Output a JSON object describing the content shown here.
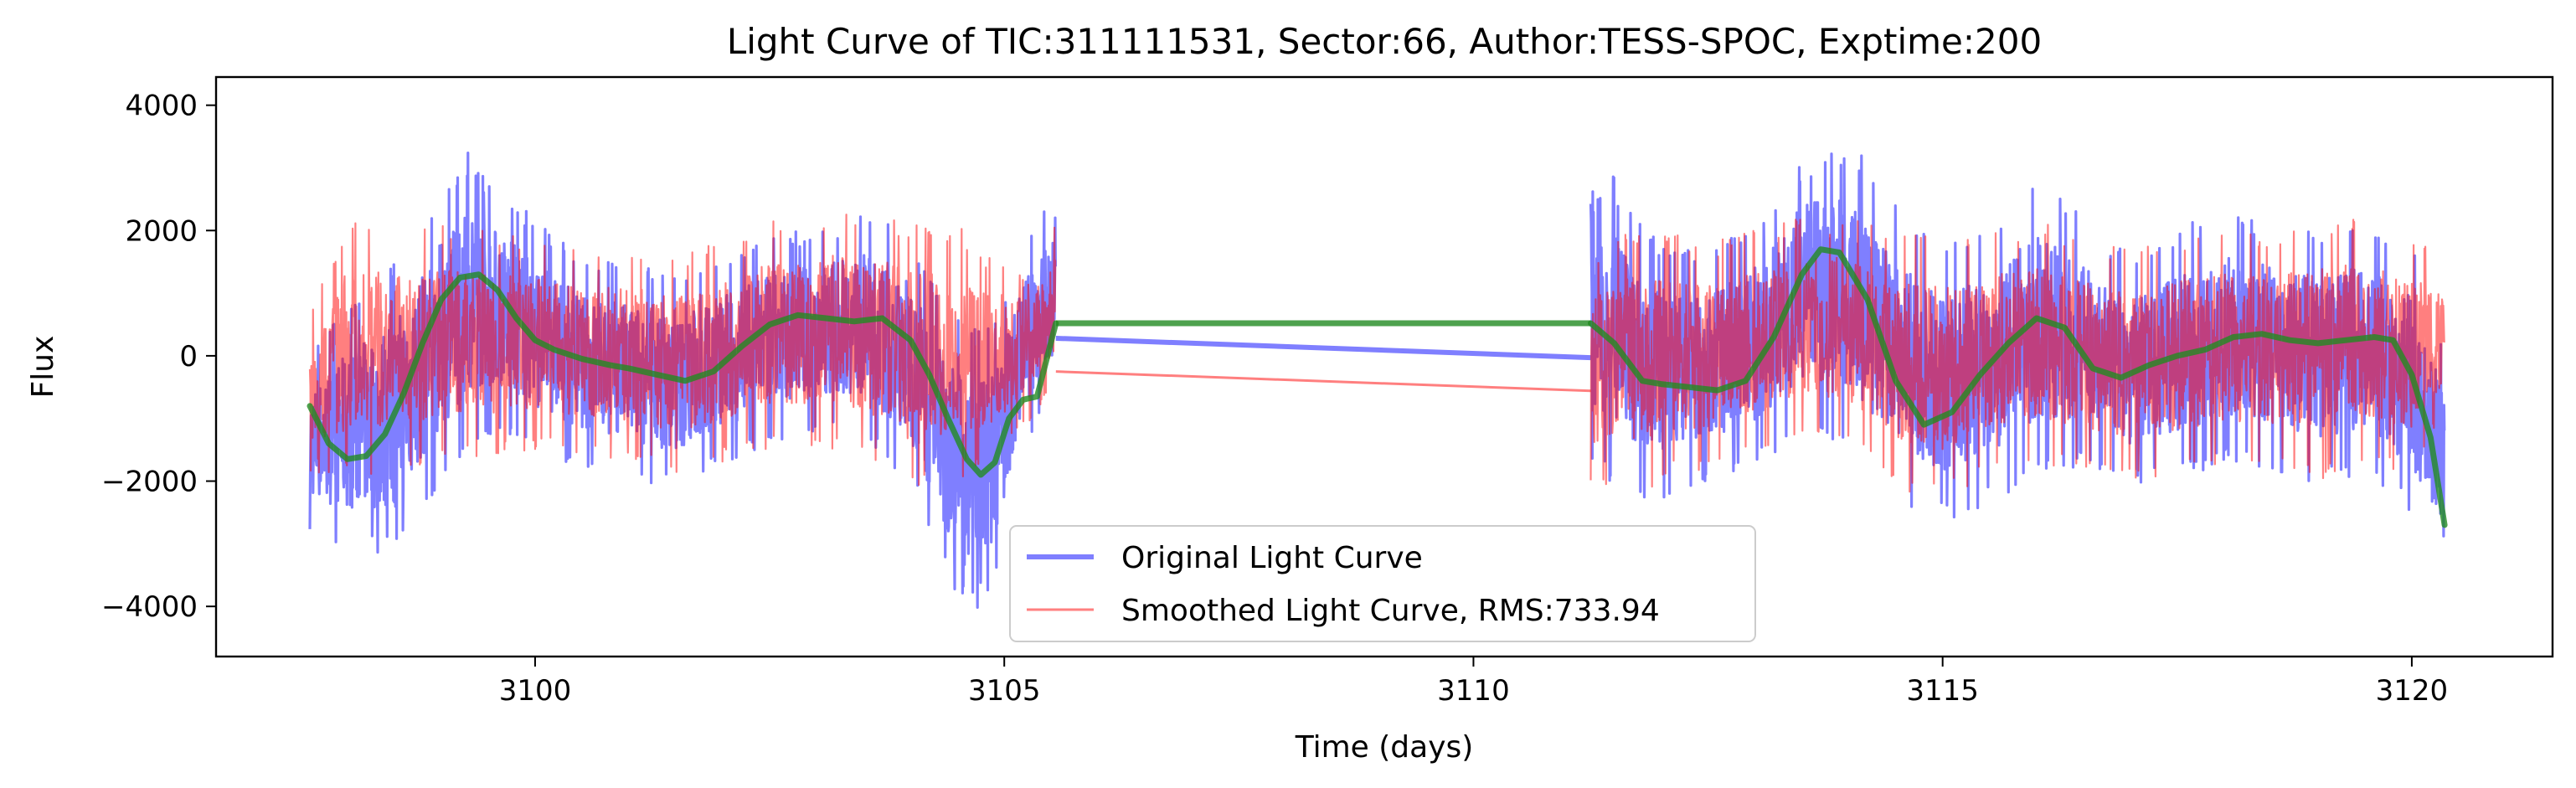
{
  "chart_data": {
    "type": "line",
    "title": "Light Curve of TIC:311111531, Sector:66, Author:TESS-SPOC, Exptime:200",
    "xlabel": "Time (days)",
    "ylabel": "Flux",
    "xlim": [
      3096.6,
      3121.5
    ],
    "ylim": [
      -4800,
      4450
    ],
    "xticks": [
      3100,
      3105,
      3110,
      3115,
      3120
    ],
    "xtick_labels": [
      "3100",
      "3105",
      "3110",
      "3115",
      "3120"
    ],
    "yticks": [
      -4000,
      -2000,
      0,
      2000,
      4000
    ],
    "ytick_labels": [
      "−4000",
      "−2000",
      "0",
      "2000",
      "4000"
    ],
    "grid": false,
    "legend": {
      "position": "lower-center"
    },
    "segments": [
      {
        "start": 3097.6,
        "end": 3105.55
      },
      {
        "start": 3111.25,
        "end": 3120.35
      }
    ],
    "gap_lines": [
      {
        "series": "Original Light Curve",
        "x": [
          3105.55,
          3111.25
        ],
        "y": [
          280,
          -30
        ]
      },
      {
        "series": "Smoothed Light Curve, RMS:733.94",
        "x": [
          3105.55,
          3111.25
        ],
        "y": [
          -250,
          -560
        ]
      },
      {
        "series": "trend",
        "x": [
          3105.55,
          3111.25
        ],
        "y": [
          520,
          520
        ]
      }
    ],
    "series": [
      {
        "name": "Original Light Curve",
        "color": "#0000ff",
        "opacity": 0.5,
        "legend": true,
        "envelope": {
          "x": [
            3097.6,
            3098.0,
            3098.5,
            3099.0,
            3099.3,
            3099.6,
            3100.0,
            3100.5,
            3101.0,
            3101.5,
            3102.0,
            3102.5,
            3103.0,
            3103.5,
            3104.0,
            3104.3,
            3104.6,
            3104.9,
            3105.2,
            3105.55,
            3111.25,
            3111.6,
            3112.0,
            3112.5,
            3113.0,
            3113.5,
            3114.0,
            3114.5,
            3115.0,
            3115.5,
            3116.0,
            3116.5,
            3117.0,
            3117.5,
            3118.0,
            3118.5,
            3119.0,
            3119.5,
            3120.0,
            3120.35
          ],
          "upper": [
            0,
            800,
            1500,
            2700,
            3300,
            2800,
            2200,
            1600,
            1500,
            1300,
            1600,
            1900,
            2100,
            2300,
            2000,
            1000,
            400,
            500,
            1800,
            2600,
            4000,
            2500,
            1800,
            1600,
            2200,
            3300,
            3500,
            2400,
            1800,
            2100,
            2900,
            2200,
            1600,
            2000,
            2400,
            2200,
            2000,
            2200,
            1800,
            0
          ],
          "lower": [
            -2800,
            -3200,
            -3400,
            -2000,
            -1500,
            -1200,
            -1500,
            -1800,
            -2000,
            -2200,
            -1800,
            -1400,
            -1200,
            -1300,
            -2100,
            -3300,
            -4300,
            -3800,
            -1500,
            -500,
            -1800,
            -2200,
            -2300,
            -2000,
            -1800,
            -1200,
            -1500,
            -2300,
            -2700,
            -2400,
            -1900,
            -1800,
            -2100,
            -2000,
            -1700,
            -1800,
            -2100,
            -1900,
            -2600,
            -3300
          ]
        }
      },
      {
        "name": "Smoothed Light Curve, RMS:733.94",
        "color": "#ff0000",
        "opacity": 0.5,
        "legend": true,
        "envelope": {
          "x": [
            3097.6,
            3098.0,
            3098.5,
            3099.0,
            3099.5,
            3100.0,
            3100.5,
            3101.0,
            3101.5,
            3102.0,
            3102.5,
            3103.0,
            3103.5,
            3104.0,
            3104.5,
            3104.9,
            3105.2,
            3105.55,
            3111.25,
            3111.6,
            3112.0,
            3112.5,
            3113.0,
            3113.5,
            3114.0,
            3114.5,
            3115.0,
            3115.5,
            3116.0,
            3116.5,
            3117.0,
            3117.5,
            3118.0,
            3118.5,
            3119.0,
            3119.5,
            3120.0,
            3120.35
          ],
          "upper": [
            600,
            2300,
            2000,
            2100,
            2000,
            1900,
            1700,
            1800,
            1600,
            1900,
            2200,
            2300,
            2400,
            2200,
            2100,
            1500,
            2000,
            2200,
            1600,
            2100,
            2000,
            1800,
            2100,
            2200,
            2300,
            2000,
            1900,
            2000,
            2200,
            1900,
            1700,
            1900,
            2100,
            1900,
            2300,
            2200,
            1900,
            1600
          ],
          "lower": [
            -1900,
            -2000,
            -1800,
            -1700,
            -1600,
            -1500,
            -1600,
            -1800,
            -1900,
            -1700,
            -1500,
            -1500,
            -1600,
            -2200,
            -2000,
            -1700,
            -1200,
            -400,
            -2100,
            -2400,
            -2000,
            -1800,
            -1600,
            -1300,
            -1400,
            -2200,
            -2300,
            -1900,
            -1700,
            -1900,
            -2000,
            -1900,
            -1800,
            -1800,
            -2000,
            -1700,
            -1900,
            -900
          ]
        }
      },
      {
        "name": "trend",
        "color": "#228b22",
        "opacity": 0.8,
        "legend": false,
        "x": [
          3097.6,
          3097.8,
          3098.0,
          3098.2,
          3098.4,
          3098.6,
          3098.8,
          3099.0,
          3099.2,
          3099.4,
          3099.6,
          3099.8,
          3100.0,
          3100.2,
          3100.5,
          3100.8,
          3101.0,
          3101.3,
          3101.6,
          3101.9,
          3102.2,
          3102.5,
          3102.8,
          3103.1,
          3103.4,
          3103.7,
          3104.0,
          3104.2,
          3104.4,
          3104.6,
          3104.75,
          3104.9,
          3105.05,
          3105.2,
          3105.35,
          3105.55,
          3111.25,
          3111.5,
          3111.8,
          3112.0,
          3112.3,
          3112.6,
          3112.9,
          3113.2,
          3113.5,
          3113.7,
          3113.9,
          3114.2,
          3114.5,
          3114.8,
          3115.1,
          3115.4,
          3115.7,
          3116.0,
          3116.3,
          3116.6,
          3116.9,
          3117.2,
          3117.5,
          3117.8,
          3118.1,
          3118.4,
          3118.7,
          3119.0,
          3119.3,
          3119.6,
          3119.8,
          3120.0,
          3120.2,
          3120.35
        ],
        "y": [
          -800,
          -1400,
          -1650,
          -1600,
          -1250,
          -600,
          200,
          900,
          1250,
          1300,
          1050,
          600,
          250,
          100,
          -50,
          -150,
          -200,
          -300,
          -400,
          -250,
          150,
          500,
          650,
          600,
          550,
          600,
          250,
          -300,
          -1000,
          -1650,
          -1900,
          -1700,
          -1000,
          -700,
          -650,
          520,
          520,
          200,
          -400,
          -450,
          -500,
          -550,
          -400,
          300,
          1300,
          1700,
          1650,
          900,
          -400,
          -1100,
          -900,
          -300,
          200,
          600,
          450,
          -200,
          -350,
          -150,
          0,
          100,
          300,
          350,
          250,
          200,
          250,
          300,
          250,
          -300,
          -1300,
          -2700
        ]
      }
    ]
  }
}
